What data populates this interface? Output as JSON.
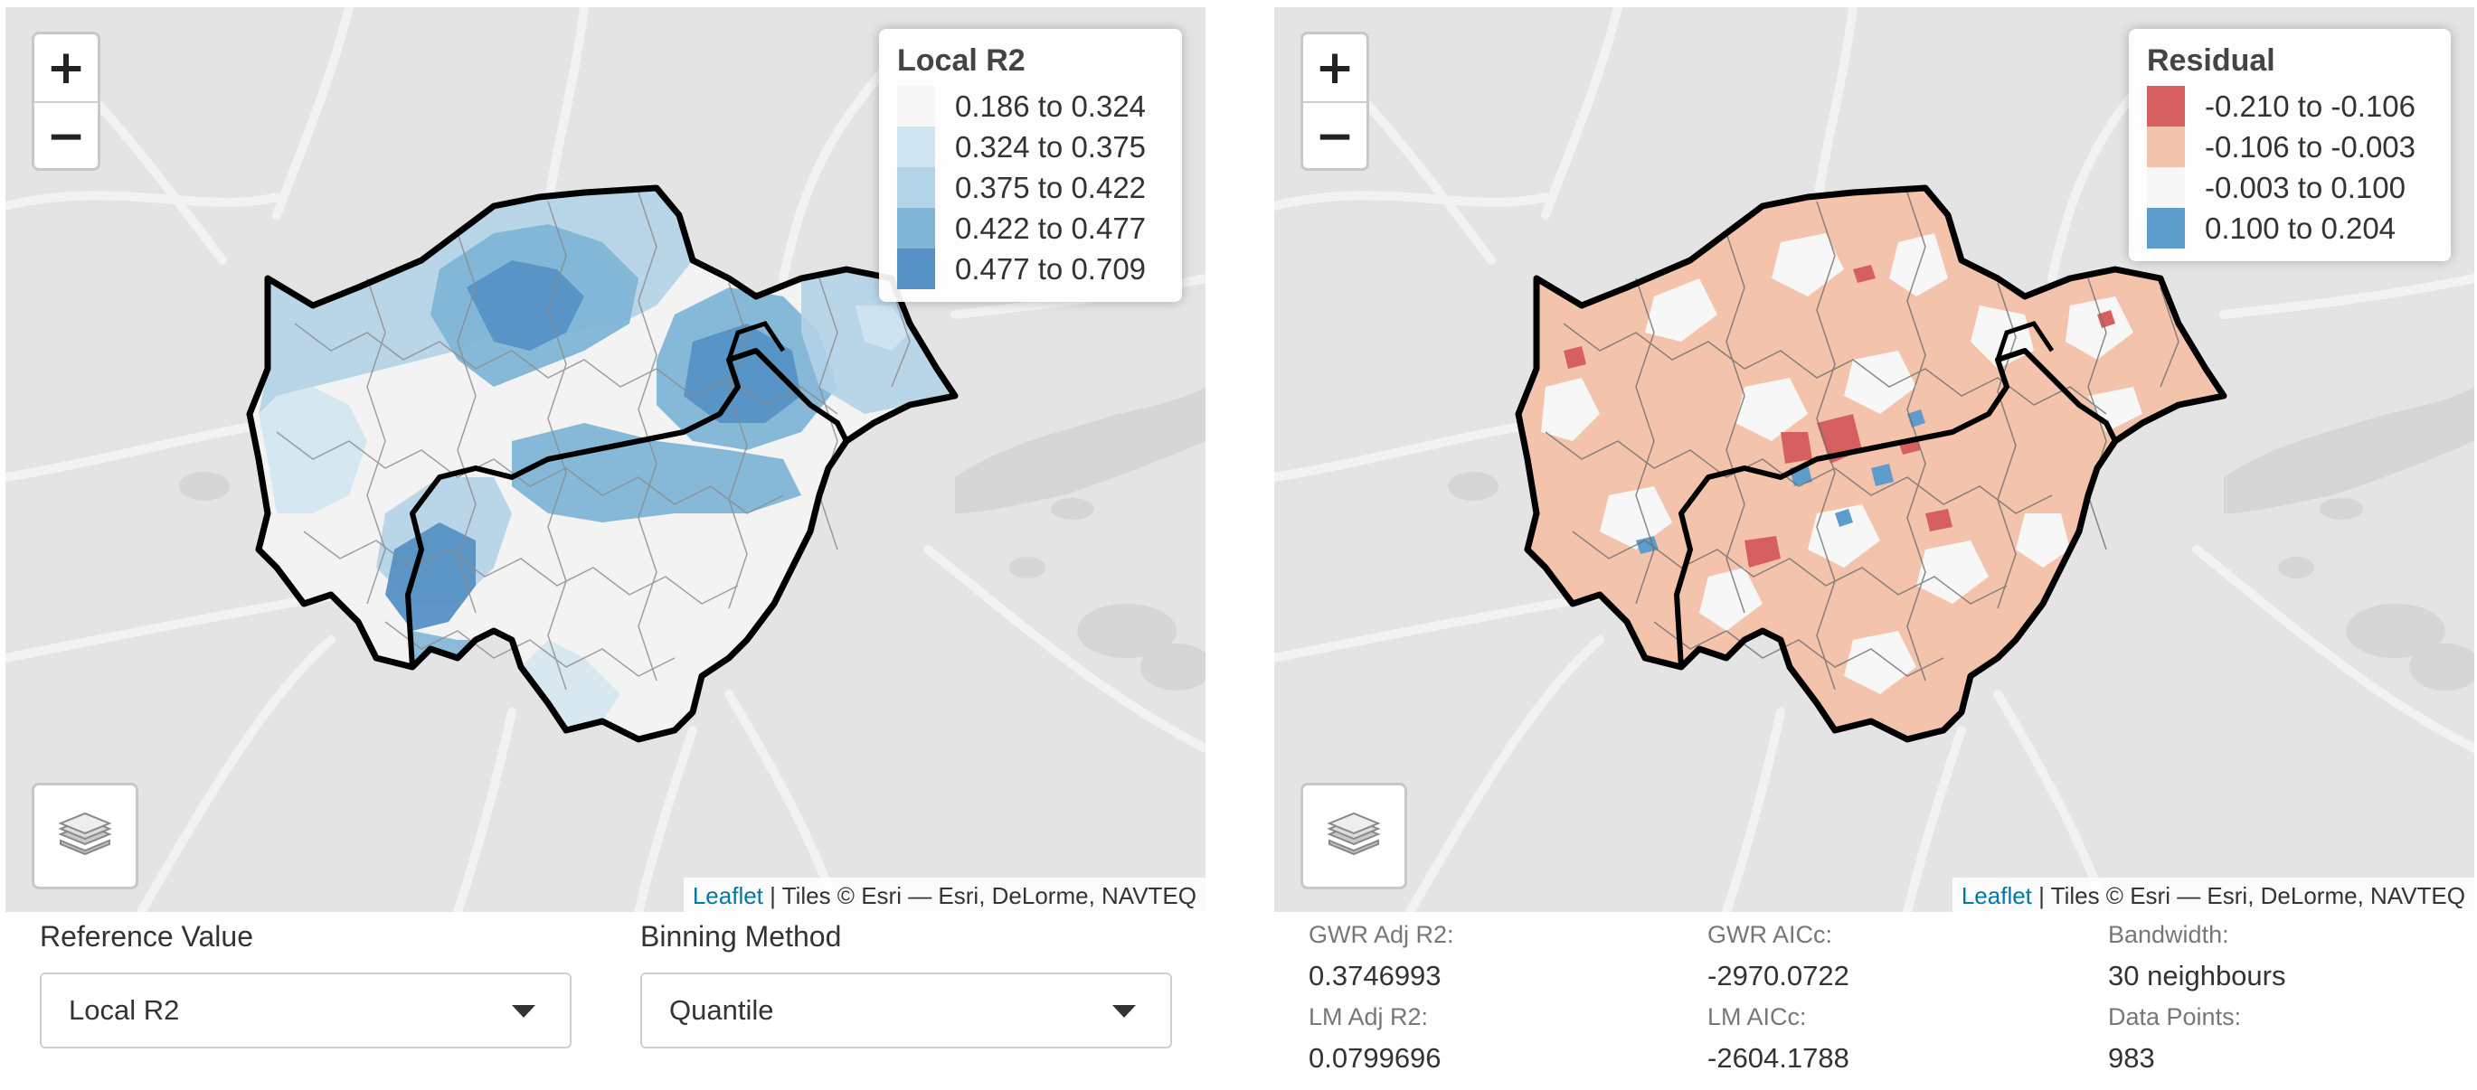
{
  "left_map": {
    "zoom_in": "+",
    "zoom_out": "−",
    "legend": {
      "title": "Local R2",
      "items": [
        {
          "label": "0.186 to 0.324",
          "color": "#f7f7f7"
        },
        {
          "label": "0.324 to 0.375",
          "color": "#d1e5f0"
        },
        {
          "label": "0.375 to 0.422",
          "color": "#b3d3e8"
        },
        {
          "label": "0.422 to 0.477",
          "color": "#80b5d6"
        },
        {
          "label": "0.477 to 0.709",
          "color": "#5591c4"
        }
      ]
    },
    "attribution": {
      "link": "Leaflet",
      "text": " | Tiles © Esri — Esri, DeLorme, NAVTEQ"
    }
  },
  "right_map": {
    "zoom_in": "+",
    "zoom_out": "−",
    "legend": {
      "title": "Residual",
      "items": [
        {
          "label": "-0.210 to -0.106",
          "color": "#d6605f"
        },
        {
          "label": "-0.106 to -0.003",
          "color": "#f4c3ab"
        },
        {
          "label": "-0.003 to 0.100",
          "color": "#f7f7f7"
        },
        {
          "label": "0.100 to 0.204",
          "color": "#5e9ccc"
        }
      ]
    },
    "attribution": {
      "link": "Leaflet",
      "text": " | Tiles © Esri — Esri, DeLorme, NAVTEQ"
    }
  },
  "controls": {
    "reference": {
      "label": "Reference Value",
      "value": "Local R2"
    },
    "binning": {
      "label": "Binning Method",
      "value": "Quantile"
    }
  },
  "stats": {
    "gwr_adj_r2": {
      "label": "GWR Adj R2:",
      "value": "0.3746993"
    },
    "gwr_aicc": {
      "label": "GWR AICc:",
      "value": "-2970.0722"
    },
    "bandwidth": {
      "label": "Bandwidth:",
      "value": "30 neighbours"
    },
    "lm_adj_r2": {
      "label": "LM Adj R2:",
      "value": "0.0799696"
    },
    "lm_aicc": {
      "label": "LM AICc:",
      "value": "-2604.1788"
    },
    "data_points": {
      "label": "Data Points:",
      "value": "983"
    }
  },
  "icons": {
    "layers": "layers-icon",
    "dropdown": "chevron-down-icon"
  }
}
